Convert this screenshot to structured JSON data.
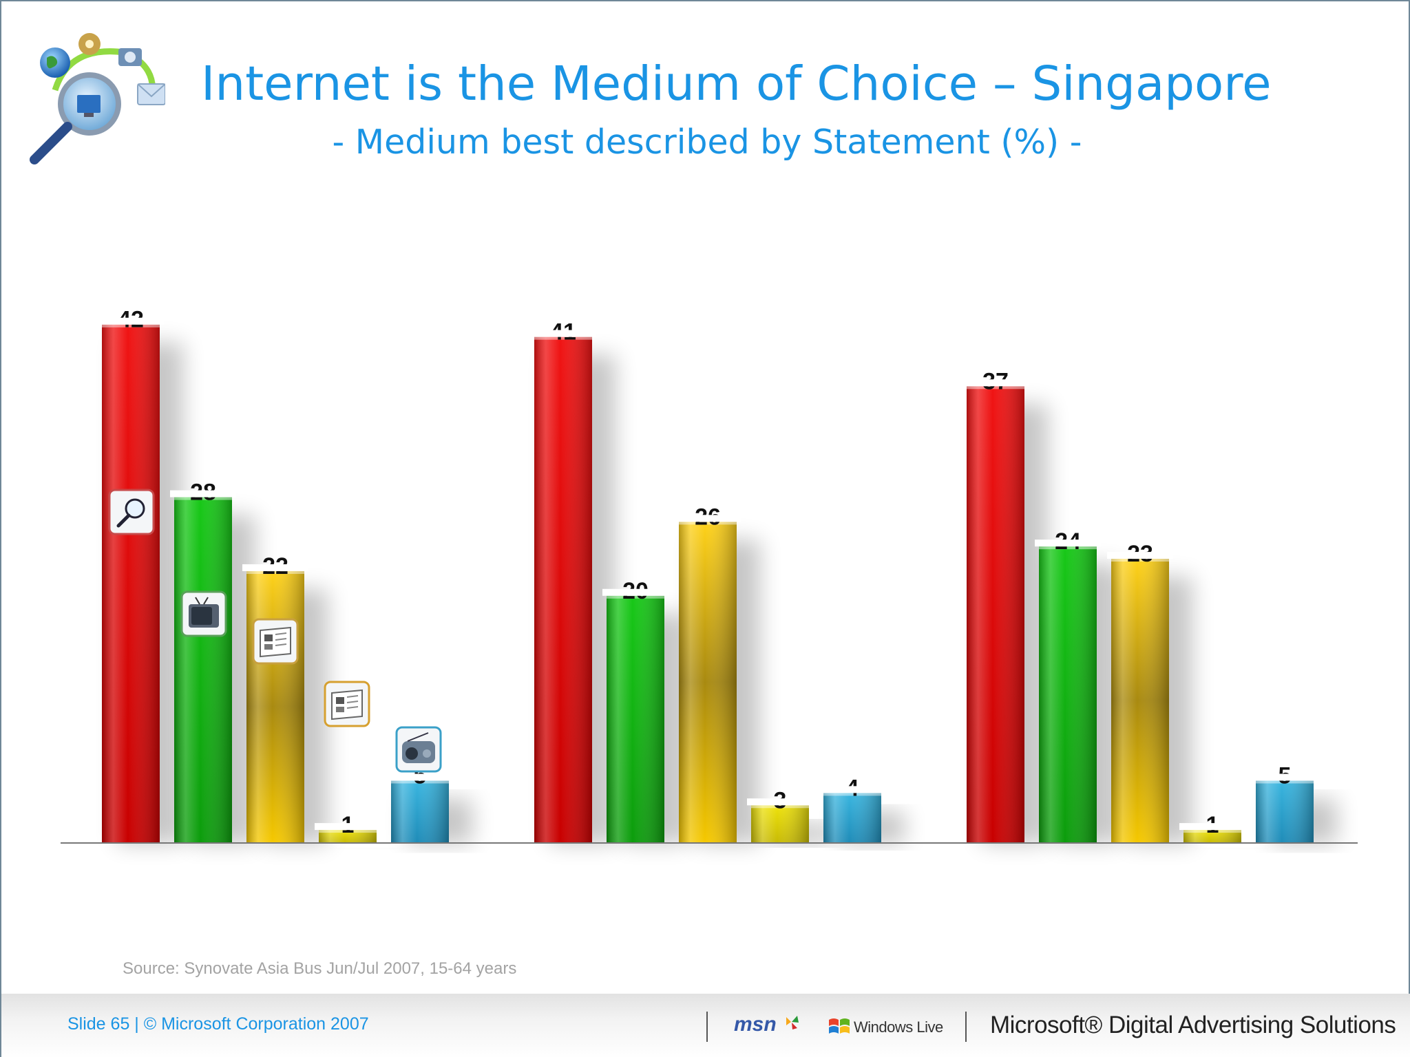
{
  "header": {
    "title": "Internet is the Medium of Choice – Singapore",
    "subtitle": "- Medium best described by Statement (%) -"
  },
  "chart_data": {
    "type": "bar",
    "title": "Internet is the Medium of Choice – Singapore",
    "subtitle": "- Medium best described by Statement (%) -",
    "categories": [
      "",
      "",
      ""
    ],
    "series": [
      {
        "values": [
          42,
          41,
          37
        ],
        "color": "#e30b0b",
        "icon": "search-icon"
      },
      {
        "values": [
          28,
          20,
          24
        ],
        "color": "#14b414",
        "icon": "tv-icon"
      },
      {
        "values": [
          22,
          26,
          23
        ],
        "color": "#f0c300",
        "icon": "newspaper-icon"
      },
      {
        "values": [
          1,
          3,
          1
        ],
        "color": "#e6dc0a",
        "icon": "magazine-icon"
      },
      {
        "values": [
          5,
          4,
          5
        ],
        "color": "#2aa2cc",
        "icon": "radio-icon"
      }
    ],
    "ylim": [
      0,
      45
    ],
    "grid": false,
    "legend": "none"
  },
  "source": "Source: Synovate Asia Bus Jun/Jul 2007, 15-64 years",
  "footer": {
    "slide_info": "Slide 65 | © Microsoft Corporation 2007",
    "msn_label": "msn",
    "windows_live_label": "Windows Live",
    "company_label": "Microsoft® Digital Advertising Solutions"
  }
}
